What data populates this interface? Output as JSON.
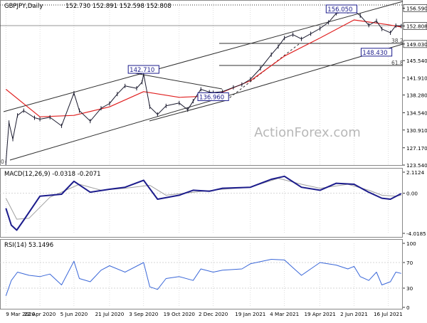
{
  "header": {
    "symbol": "GBPJPY,Daily",
    "ohlc": "152.730 152.891 152.598 152.808"
  },
  "watermark": "ActionForex.com",
  "colors": {
    "background": "#ffffff",
    "price": "#1a1a2e",
    "ma": "#e02020",
    "macd": "#1c1c8c",
    "macd_signal": "#a0a0a0",
    "rsi": "#3a67d8",
    "channel": "#303030",
    "grid": "#c8c8c8",
    "tag_border": "#1c1c8c"
  },
  "chart_data": [
    {
      "type": "line",
      "panel": "price",
      "title": "GBPJPY,Daily",
      "x_ticks": [
        "9 Mar 2020",
        "22 Apr 2020",
        "5 Jun 2020",
        "21 Jul 2020",
        "3 Sep 2020",
        "19 Oct 2020",
        "2 Dec 2020",
        "19 Jan 2021",
        "4 Mar 2021",
        "19 Apr 2021",
        "2 Jun 2021",
        "16 Jul 2021"
      ],
      "y_ticks": [
        123.54,
        127.17,
        130.91,
        134.54,
        138.28,
        141.91,
        145.54,
        149.03,
        152.808,
        156.59
      ],
      "ylim": [
        123.54,
        158.0
      ],
      "series": [
        {
          "name": "price",
          "x": [
            "2020-03-09",
            "2020-03-13",
            "2020-03-18",
            "2020-03-24",
            "2020-04-01",
            "2020-04-15",
            "2020-04-22",
            "2020-05-05",
            "2020-05-20",
            "2020-06-05",
            "2020-06-12",
            "2020-06-26",
            "2020-07-10",
            "2020-07-21",
            "2020-07-31",
            "2020-08-10",
            "2020-08-25",
            "2020-09-01",
            "2020-09-03",
            "2020-09-11",
            "2020-09-21",
            "2020-10-02",
            "2020-10-19",
            "2020-10-30",
            "2020-11-06",
            "2020-11-16",
            "2020-11-27",
            "2020-12-02",
            "2020-12-14",
            "2020-12-28",
            "2021-01-08",
            "2021-01-19",
            "2021-02-01",
            "2021-02-15",
            "2021-02-24",
            "2021-03-04",
            "2021-03-15",
            "2021-03-26",
            "2021-04-07",
            "2021-04-19",
            "2021-04-30",
            "2021-05-10",
            "2021-05-25",
            "2021-06-02",
            "2021-06-10",
            "2021-06-21",
            "2021-07-01",
            "2021-07-08",
            "2021-07-19",
            "2021-07-26",
            "2021-08-02"
          ],
          "values": [
            124.0,
            132.5,
            129.0,
            134.0,
            135.0,
            133.5,
            133.2,
            133.6,
            131.8,
            138.7,
            135.0,
            132.8,
            135.5,
            136.5,
            138.5,
            140.2,
            139.7,
            141.0,
            142.71,
            135.8,
            134.2,
            136.0,
            136.6,
            135.2,
            137.0,
            139.5,
            138.9,
            138.8,
            139.0,
            139.9,
            140.5,
            141.6,
            143.9,
            146.8,
            148.5,
            150.3,
            151.0,
            150.1,
            151.2,
            152.3,
            153.6,
            155.5,
            155.9,
            156.05,
            155.0,
            153.0,
            153.9,
            152.2,
            151.4,
            152.9,
            152.808
          ]
        },
        {
          "name": "moving average",
          "x": [
            "2020-03-09",
            "2020-04-22",
            "2020-06-05",
            "2020-07-21",
            "2020-09-03",
            "2020-10-19",
            "2020-12-02",
            "2021-01-19",
            "2021-03-04",
            "2021-04-19",
            "2021-06-02",
            "2021-07-16",
            "2021-08-02"
          ],
          "values": [
            139.5,
            133.7,
            134.0,
            135.8,
            139.0,
            137.8,
            138.1,
            141.3,
            146.5,
            150.3,
            154.1,
            153.1,
            152.6
          ]
        }
      ],
      "annotations": [
        {
          "label": "156.050",
          "x": "2021-06-02",
          "y": 156.05
        },
        {
          "label": "142.710",
          "x": "2020-09-03",
          "y": 142.71
        },
        {
          "label": "136.960",
          "x": "2020-12-02",
          "y": 136.96
        },
        {
          "label": "148.430",
          "x": "2021-07-01",
          "y": 148.43
        },
        {
          "label": "38.2",
          "y": 149.03
        },
        {
          "label": "61.8",
          "y": 144.4
        },
        {
          "label": "0",
          "y": 123.3
        }
      ]
    },
    {
      "type": "line",
      "panel": "macd",
      "title": "MACD(12,26,9) -0.0318 -0.2071",
      "y_ticks": [
        2.1124,
        0.0,
        -4.0185
      ],
      "ylim": [
        -4.0185,
        2.1124
      ],
      "series": [
        {
          "x": [
            "2020-03-09",
            "2020-03-16",
            "2020-03-23",
            "2020-04-01",
            "2020-04-22",
            "2020-05-20",
            "2020-06-05",
            "2020-06-26",
            "2020-07-21",
            "2020-08-10",
            "2020-09-03",
            "2020-09-21",
            "2020-10-19",
            "2020-11-06",
            "2020-11-27",
            "2020-12-14",
            "2021-01-19",
            "2021-02-15",
            "2021-03-04",
            "2021-03-26",
            "2021-04-19",
            "2021-05-10",
            "2021-06-02",
            "2021-06-21",
            "2021-07-08",
            "2021-07-19",
            "2021-08-02"
          ],
          "values": [
            -1.5,
            -3.2,
            -3.7,
            -2.7,
            -0.3,
            -0.1,
            1.2,
            0.1,
            0.4,
            0.6,
            1.3,
            -0.6,
            -0.2,
            0.3,
            0.2,
            0.5,
            0.6,
            1.4,
            1.7,
            0.6,
            0.3,
            1.0,
            0.9,
            0.1,
            -0.5,
            -0.6,
            -0.03
          ]
        },
        {
          "x": [
            "2020-03-09",
            "2020-03-23",
            "2020-04-08",
            "2020-05-05",
            "2020-06-12",
            "2020-07-10",
            "2020-08-10",
            "2020-09-11",
            "2020-10-02",
            "2020-11-06",
            "2020-12-14",
            "2021-01-19",
            "2021-02-24",
            "2021-03-26",
            "2021-04-19",
            "2021-05-25",
            "2021-06-21",
            "2021-07-08",
            "2021-07-26",
            "2021-08-02"
          ],
          "values": [
            -0.5,
            -2.6,
            -2.5,
            -0.4,
            0.9,
            0.3,
            0.5,
            0.8,
            -0.2,
            0.1,
            0.4,
            0.6,
            1.5,
            0.9,
            0.5,
            0.9,
            0.3,
            -0.2,
            -0.3,
            -0.2
          ]
        }
      ]
    },
    {
      "type": "line",
      "panel": "rsi",
      "title": "RSI(14) 53.1496",
      "y_ticks": [
        100,
        70,
        30,
        0
      ],
      "ylim": [
        0,
        100
      ],
      "series": [
        {
          "x": [
            "2020-03-09",
            "2020-03-16",
            "2020-03-24",
            "2020-04-08",
            "2020-04-22",
            "2020-05-05",
            "2020-05-20",
            "2020-06-05",
            "2020-06-12",
            "2020-06-26",
            "2020-07-10",
            "2020-07-21",
            "2020-08-10",
            "2020-09-03",
            "2020-09-11",
            "2020-09-21",
            "2020-10-02",
            "2020-10-19",
            "2020-11-06",
            "2020-11-16",
            "2020-12-02",
            "2020-12-14",
            "2021-01-08",
            "2021-01-19",
            "2021-02-15",
            "2021-03-04",
            "2021-03-15",
            "2021-03-26",
            "2021-04-07",
            "2021-04-19",
            "2021-05-10",
            "2021-05-25",
            "2021-06-02",
            "2021-06-10",
            "2021-06-21",
            "2021-07-01",
            "2021-07-08",
            "2021-07-19",
            "2021-07-26",
            "2021-08-02"
          ],
          "values": [
            18,
            42,
            55,
            50,
            48,
            52,
            35,
            72,
            45,
            40,
            58,
            65,
            55,
            70,
            32,
            28,
            45,
            48,
            42,
            60,
            55,
            58,
            60,
            68,
            75,
            74,
            62,
            50,
            60,
            70,
            66,
            60,
            64,
            48,
            42,
            55,
            35,
            40,
            55,
            53
          ]
        }
      ]
    }
  ]
}
